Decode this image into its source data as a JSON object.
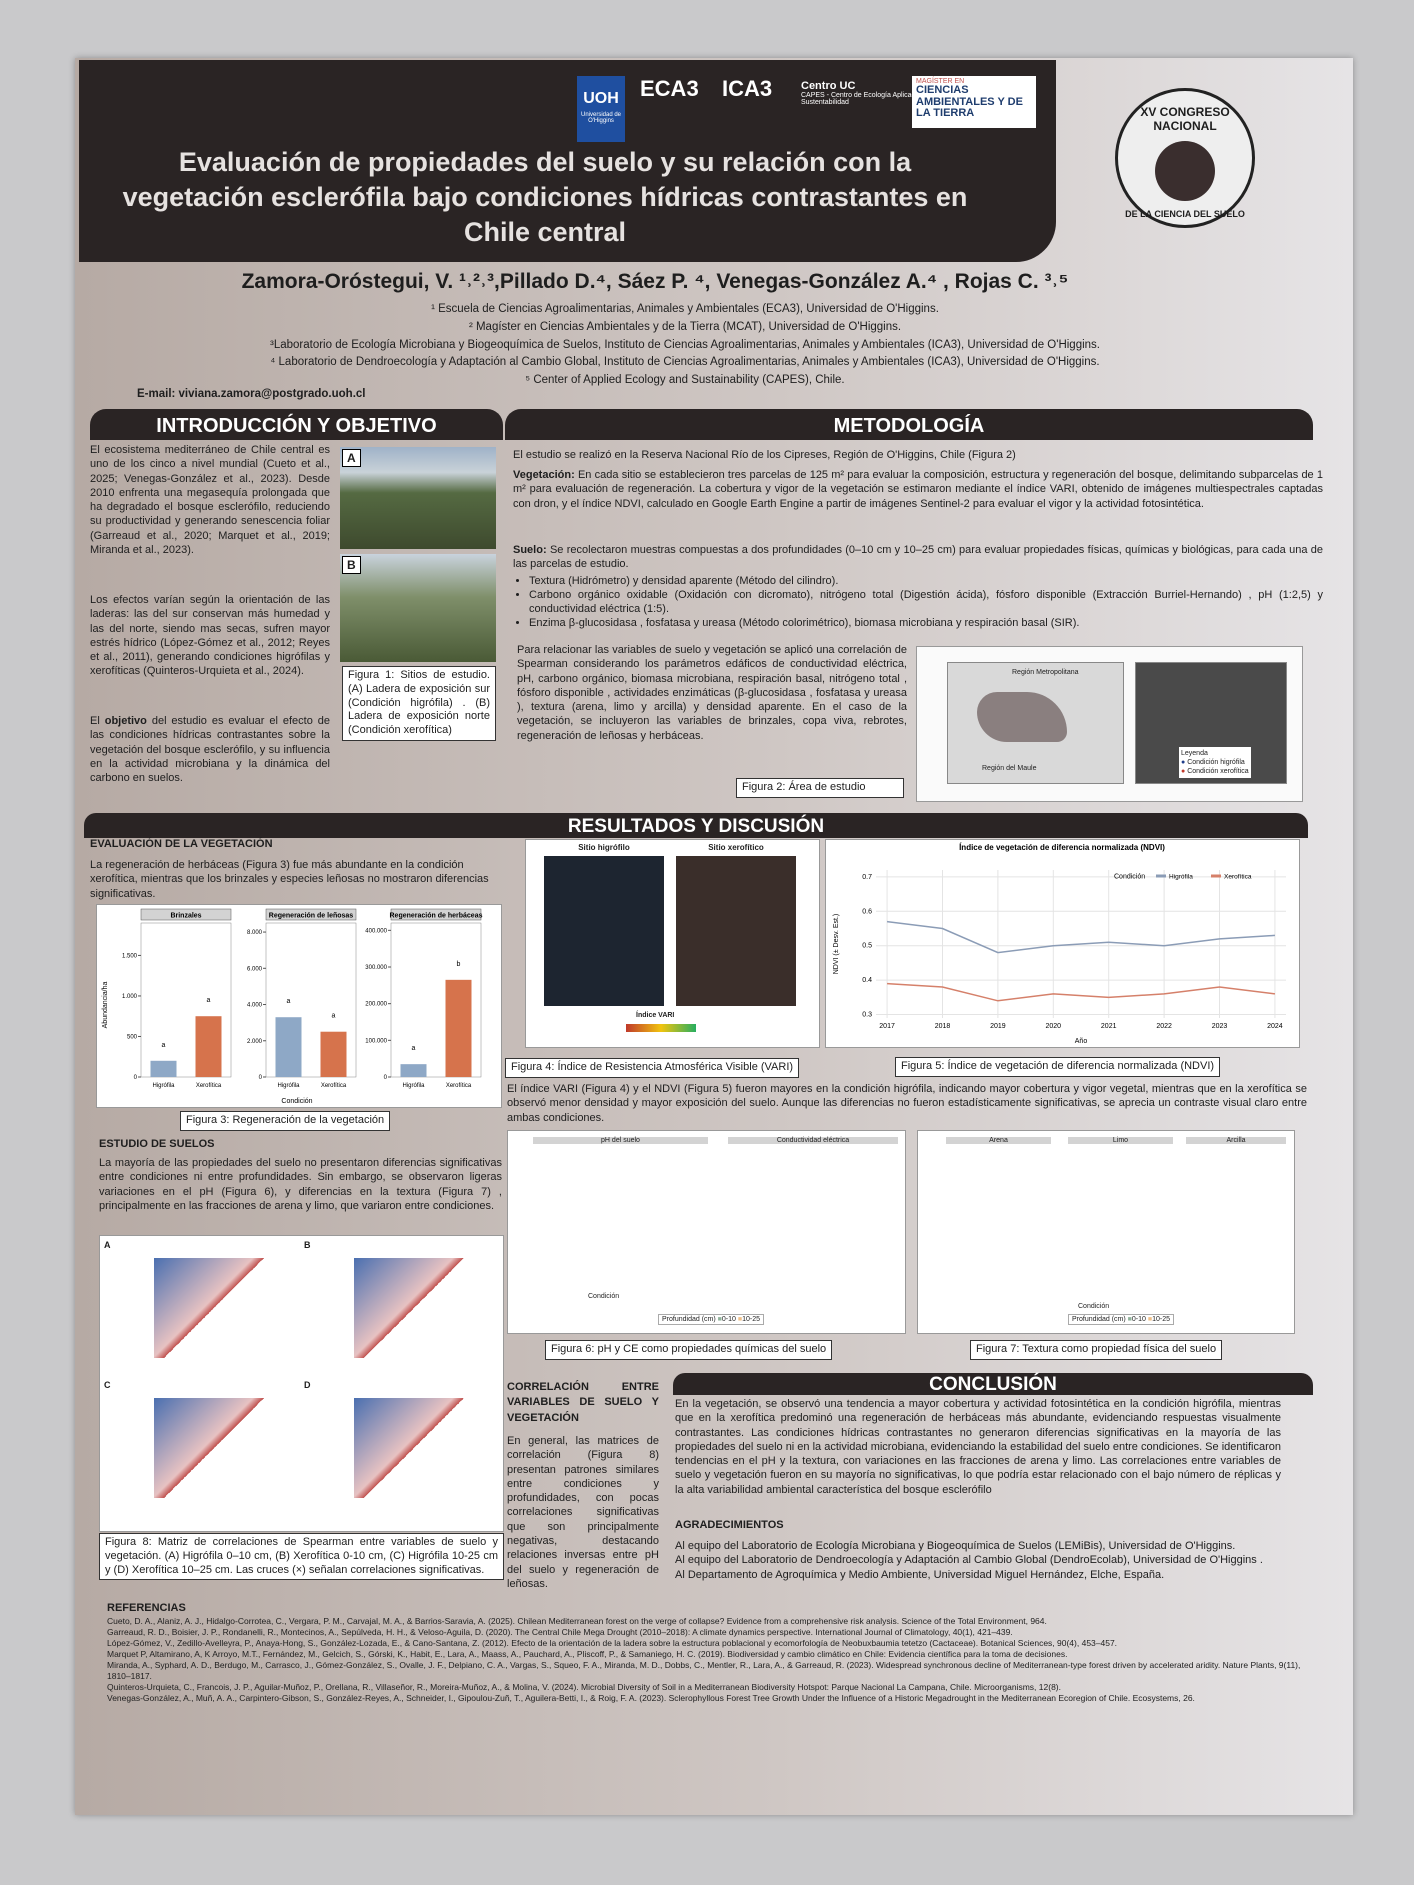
{
  "header": {
    "logos": {
      "uoh": "UOH",
      "uoh_name": "Universidad de O'Higgins",
      "eca3": "ECA3",
      "ica3": "ICA3",
      "centro_uc": "Centro UC",
      "centro_uc_sub": "CAPES - Centro de Ecología Aplicada y Sustentabilidad",
      "magister_1": "MAGÍSTER EN",
      "magister_2": "CIENCIAS AMBIENTALES Y DE LA TIERRA",
      "congress_1": "XV CONGRESO NACIONAL",
      "congress_2": "DE LA CIENCIA DEL SUELO"
    },
    "title": "Evaluación de propiedades del suelo y su relación con la vegetación esclerófila bajo condiciones hídricas contrastantes en Chile central",
    "authors": "Zamora-Oróstegui, V. ¹˒²˒³,Pillado D.⁴, Sáez P. ⁴, Venegas-González A.⁴ , Rojas C. ³˒⁵",
    "affiliations": [
      "¹ Escuela de Ciencias Agroalimentarias, Animales y Ambientales (ECA3), Universidad de O'Higgins.",
      "² Magíster en Ciencias Ambientales y de la Tierra (MCAT), Universidad de O'Higgins.",
      "³Laboratorio de Ecología Microbiana y Biogeoquímica de Suelos, Instituto de Ciencias Agroalimentarias, Animales y Ambientales (ICA3), Universidad de O'Higgins.",
      "⁴ Laboratorio de Dendroecología y Adaptación al Cambio Global, Instituto de Ciencias Agroalimentarias, Animales y Ambientales (ICA3), Universidad de O'Higgins.",
      "⁵ Center of Applied Ecology and Sustainability (CAPES), Chile."
    ],
    "email": "E-mail: viviana.zamora@postgrado.uoh.cl"
  },
  "introduccion": {
    "heading": "INTRODUCCIÓN Y OBJETIVO",
    "p1": "El ecosistema mediterráneo de Chile central es uno de los cinco a nivel mundial (Cueto et al., 2025; Venegas-González et al., 2023). Desde 2010 enfrenta una megasequía prolongada que ha degradado el bosque esclerófilo, reduciendo su productividad y generando senescencia foliar (Garreaud et al., 2020; Marquet et al., 2019; Miranda et al., 2023).",
    "p2": "Los efectos varían según la orientación de las laderas: las del sur conservan más humedad y las del norte, siendo mas secas, sufren mayor estrés hídrico (López-Gómez et al., 2012; Reyes et al., 2011), generando condiciones higrófilas y xerofíticas (Quinteros-Urquieta et al., 2024).",
    "p3_pre": "El",
    "p3_bold": "objetivo",
    "p3_post": "del estudio es evaluar el efecto de las condiciones hídricas contrastantes sobre la vegetación del bosque esclerófilo, y su influencia en la actividad microbiana y la dinámica del carbono en suelos.",
    "photo_a": "A",
    "photo_b": "B",
    "figure_1_caption": "Figura 1: Sitios de estudio. (A) Ladera de exposición sur (Condición higrófila) . (B) Ladera de exposición norte (Condición xerofítica)"
  },
  "metodologia": {
    "heading": "METODOLOGÍA",
    "p1": "El estudio se realizó en la Reserva Nacional Río de los Cipreses, Región de O'Higgins, Chile (Figura 2)",
    "veg_label": "Vegetación:",
    "veg_text": "En cada sitio se establecieron tres parcelas de 125 m² para evaluar la composición, estructura y regeneración del bosque, delimitando subparcelas de 1 m² para evaluación de regeneración. La cobertura y vigor de la vegetación se estimaron mediante el índice VARI, obtenido de imágenes multiespectrales captadas con dron, y el índice NDVI, calculado en Google Earth Engine a partir de imágenes Sentinel-2 para evaluar el vigor y la actividad fotosintética.",
    "suelo_label": "Suelo:",
    "suelo_text": "Se recolectaron muestras compuestas a dos profundidades (0–10 cm y 10–25 cm) para evaluar propiedades físicas, químicas y biológicas, para cada una de las parcelas de estudio.",
    "bullets": [
      "Textura (Hidrómetro) y densidad aparente (Método del cilindro).",
      "Carbono orgánico oxidable (Oxidación con dicromato), nitrógeno total (Digestión ácida), fósforo disponible (Extracción Burriel-Hernando) , pH (1:2,5) y conductividad eléctrica (1:5).",
      "Enzima β-glucosidasa , fosfatasa y ureasa (Método colorimétrico), biomasa microbiana y respiración basal (SIR)."
    ],
    "spearman": "Para relacionar las variables de suelo y vegetación se aplicó una correlación de Spearman considerando los parámetros edáficos de conductividad eléctrica, pH, carbono orgánico, biomasa microbiana, respiración basal, nitrógeno total , fósforo disponible , actividades enzimáticas (β-glucosidasa , fosfatasa y ureasa ), textura (arena, limo y arcilla) y densidad aparente. En el caso de la vegetación, se incluyeron las variables de brinzales, copa viva, rebrotes, regeneración de leñosas y herbáceas.",
    "map": {
      "region_metropolitana": "Región Metropolitana",
      "region_maule": "Región del Maule",
      "legend_title": "Leyenda",
      "legend_1": "Condición higrófila",
      "legend_2": "Condición xerofítica"
    },
    "figure_2_caption": "Figura 2: Área de estudio"
  },
  "resultados": {
    "heading": "RESULTADOS Y DISCUSIÓN",
    "veg_heading": "EVALUACIÓN DE LA VEGETACIÓN",
    "veg_text": "La regeneración de herbáceas (Figura 3) fue más abundante en la condición xerofítica, mientras que los brinzales y especies leñosas no mostraron diferencias significativas.",
    "figure_3": {
      "type": "bar",
      "y_label": "Abundancia/ha",
      "x_label": "Condición",
      "colors": [
        "#8ea8c6",
        "#d6734c"
      ],
      "panels": [
        {
          "title": "Brinzales",
          "categories": [
            "Higrófila",
            "Xerofítica"
          ],
          "values": [
            200,
            750
          ],
          "letters": [
            "a",
            "a"
          ],
          "ylim": [
            0,
            1900
          ],
          "yticks": [
            0,
            500,
            {
              "value": 1000,
              "label": "1.000"
            },
            {
              "value": 1500,
              "label": "1.500"
            }
          ]
        },
        {
          "title": "Regeneración de leñosas",
          "categories": [
            "Higrófila",
            "Xerofítica"
          ],
          "values": [
            3300,
            2500
          ],
          "letters": [
            "a",
            "a"
          ],
          "ylim": [
            0,
            8500
          ],
          "yticks": [
            0,
            {
              "value": 2000,
              "label": "2.000"
            },
            {
              "value": 4000,
              "label": "4.000"
            },
            {
              "value": 6000,
              "label": "6.000"
            },
            {
              "value": 8000,
              "label": "8.000"
            }
          ]
        },
        {
          "title": "Regeneración de herbáceas",
          "categories": [
            "Higrófila",
            "Xerofítica"
          ],
          "values": [
            35000,
            265000
          ],
          "letters": [
            "a",
            "b"
          ],
          "ylim": [
            0,
            420000
          ],
          "yticks": [
            0,
            {
              "value": 100000,
              "label": "100.000"
            },
            {
              "value": 200000,
              "label": "200.000"
            },
            {
              "value": 300000,
              "label": "300.000"
            },
            {
              "value": 400000,
              "label": "400.000"
            }
          ]
        }
      ]
    },
    "figure_3_caption": "Figura 3: Regeneración de la vegetación",
    "suelo_heading": "ESTUDIO DE SUELOS",
    "suelo_text": "La mayoría de las propiedades del suelo no presentaron diferencias significativas entre condiciones ni entre profundidades. Sin embargo, se observaron ligeras variaciones en el pH (Figura 6), y diferencias en la textura (Figura 7) , principalmente en las fracciones de arena y limo, que variaron entre condiciones.",
    "figure_8_panels": [
      "A",
      "B",
      "C",
      "D"
    ],
    "figure_8_caption": "Figura 8: Matriz de correlaciones de Spearman entre variables de suelo y vegetación. (A) Higrófila 0–10 cm, (B) Xerofítica 0-10 cm, (C) Higrófila 10-25 cm y (D) Xerofítica 10–25 cm. Las cruces (×) señalan correlaciones significativas.",
    "figure_4": {
      "site_1": "Sitio higrófilo",
      "site_2": "Sitio xerofítico",
      "scale_title": "Índice VARI"
    },
    "figure_4_caption": "Figura 4: Índice de Resistencia Atmosférica Visible (VARI)",
    "figure_5": {
      "type": "line",
      "title": "Índice de vegetación de diferencia normalizada (NDVI)",
      "y_label": "NDVI (± Desv. Est.)",
      "x_label": "Año",
      "legend_title": "Condición",
      "x": [
        2017,
        2018,
        2019,
        2020,
        2021,
        2022,
        2023,
        2024
      ],
      "xlim": [
        2016.8,
        2024.2
      ],
      "xticks": [
        2017,
        2018,
        2019,
        2020,
        2021,
        2022,
        2023,
        2024
      ],
      "ylim": [
        0.29,
        0.72
      ],
      "yticks": [
        0.3,
        0.4,
        0.5,
        0.6,
        0.7
      ],
      "grid": true,
      "series": [
        {
          "name": "Higrófila",
          "color": "#8b9cb6",
          "values": [
            0.57,
            0.55,
            0.48,
            0.5,
            0.51,
            0.5,
            0.52,
            0.53
          ]
        },
        {
          "name": "Xerofítica",
          "color": "#d5806a",
          "values": [
            0.39,
            0.38,
            0.34,
            0.36,
            0.35,
            0.36,
            0.38,
            0.36
          ]
        }
      ]
    },
    "figure_5_caption": "Figura 5: Índice de vegetación de diferencia normalizada (NDVI)",
    "vari_text": "El índice VARI (Figura 4) y el NDVI (Figura 5) fueron mayores en la condición higrófila, indicando mayor cobertura y vigor vegetal, mientras que en la xerofítica se observó menor densidad y mayor exposición del suelo. Aunque las diferencias no fueron estadísticamente significativas, se aprecia un contraste visual claro entre ambas condiciones.",
    "figure_6": {
      "panel_1": "pH del suelo",
      "panel_2": "Conductividad eléctrica",
      "x_label": "Condición",
      "legend_title": "Profundidad (cm)",
      "legend_1": "0-10",
      "legend_2": "10-25"
    },
    "figure_6_caption": "Figura 6: pH y CE como propiedades químicas del suelo",
    "figure_7": {
      "panel_1": "Arena",
      "panel_2": "Limo",
      "panel_3": "Arcilla",
      "x_label": "Condición",
      "legend_title": "Profundidad (cm)",
      "legend_1": "0-10",
      "legend_2": "10-25"
    },
    "figure_7_caption": "Figura 7: Textura como propiedad física del suelo",
    "corr_heading": "CORRELACIÓN ENTRE VARIABLES DE SUELO Y VEGETACIÓN",
    "corr_text": "En general, las matrices de correlación (Figura 8) presentan patrones similares entre condiciones y profundidades, con pocas correlaciones significativas que son principalmente negativas, destacando relaciones inversas entre pH del suelo y regeneración de leñosas."
  },
  "conclusion": {
    "heading": "CONCLUSIÓN",
    "text": "En la vegetación, se observó una tendencia a mayor cobertura y actividad fotosintética en la condición higrófila, mientras que en la xerofítica predominó una regeneración de herbáceas más abundante, evidenciando respuestas visualmente contrastantes. Las condiciones hídricas contrastantes no generaron diferencias significativas en la mayoría de las propiedades del suelo ni en la actividad microbiana, evidenciando la estabilidad del suelo entre condiciones. Se identificaron tendencias en el pH y la textura, con variaciones en las fracciones de arena y limo. Las correlaciones entre variables de suelo y vegetación fueron en su mayoría no significativas, lo que podría estar relacionado con el bajo número de réplicas y la alta variabilidad ambiental característica del bosque esclerófilo",
    "ack_heading": "AGRADECIMIENTOS",
    "ack": [
      "Al equipo del Laboratorio de Ecología Microbiana y Biogeoquímica de Suelos (LEMiBis), Universidad de O'Higgins.",
      "Al equipo del Laboratorio de Dendroecología y Adaptación al Cambio Global (DendroEcolab), Universidad de O'Higgins .",
      "Al Departamento de Agroquímica y Medio Ambiente, Universidad Miguel Hernández, Elche, España."
    ]
  },
  "referencias": {
    "heading": "REFERENCIAS",
    "items": [
      "Cueto, D. A., Alaniz, A. J., Hidalgo-Corrotea, C., Vergara, P. M., Carvajal, M. A., & Barrios-Saravia, A. (2025). Chilean Mediterranean forest on the verge of collapse? Evidence from a comprehensive risk analysis. Science of the Total Environment, 964.",
      "Garreaud, R. D., Boisier, J. P., Rondanelli, R., Montecinos, A., Sepúlveda, H. H., & Veloso-Aguila, D. (2020). The Central Chile Mega Drought (2010–2018): A climate dynamics perspective. International Journal of Climatology, 40(1), 421–439.",
      "López-Gómez, V., Zedillo-Avelleyra, P., Anaya-Hong, S., González-Lozada, E., & Cano-Santana, Z. (2012). Efecto de la orientación de la ladera sobre la estructura poblacional y ecomorfología de Neobuxbaumia tetetzo (Cactaceae). Botanical Sciences, 90(4), 453–457.",
      "Marquet P, Altamirano, A, K Arroyo, M.T., Fernández, M., Gelcich, S., Górski, K., Habit, E., Lara, A., Maass, A., Pauchard, A., Pliscoff, P., & Samaniego, H. C. (2019). Biodiversidad y cambio climático en Chile: Evidencia científica para la toma de decisiones.",
      "Miranda, A., Syphard, A. D., Berdugo, M., Carrasco, J., Gómez-González, S., Ovalle, J. F., Delpiano, C. A., Vargas, S., Squeo, F. A., Miranda, M. D., Dobbs, C., Mentler, R., Lara, A., & Garreaud, R. (2023). Widespread synchronous decline of Mediterranean-type forest driven by accelerated aridity. Nature Plants, 9(11), 1810–1817.",
      "Quinteros-Urquieta, C., Francois, J. P., Aguilar-Muñoz, P., Orellana, R., Villaseñor, R., Moreira-Muñoz, A., & Molina, V. (2024). Microbial Diversity of Soil in a Mediterranean Biodiversity Hotspot: Parque Nacional La Campana, Chile. Microorganisms, 12(8).",
      "Venegas-González, A., Muñ, A. A., Carpintero-Gibson, S., González-Reyes, A., Schneider, I., Gipoulou-Zuñ, T., Aguilera-Betti, I., & Roig, F. A. (2023). Sclerophyllous Forest Tree Growth Under the Influence of a Historic Megadrought in the Mediterranean Ecoregion of Chile. Ecosystems, 26."
    ]
  }
}
